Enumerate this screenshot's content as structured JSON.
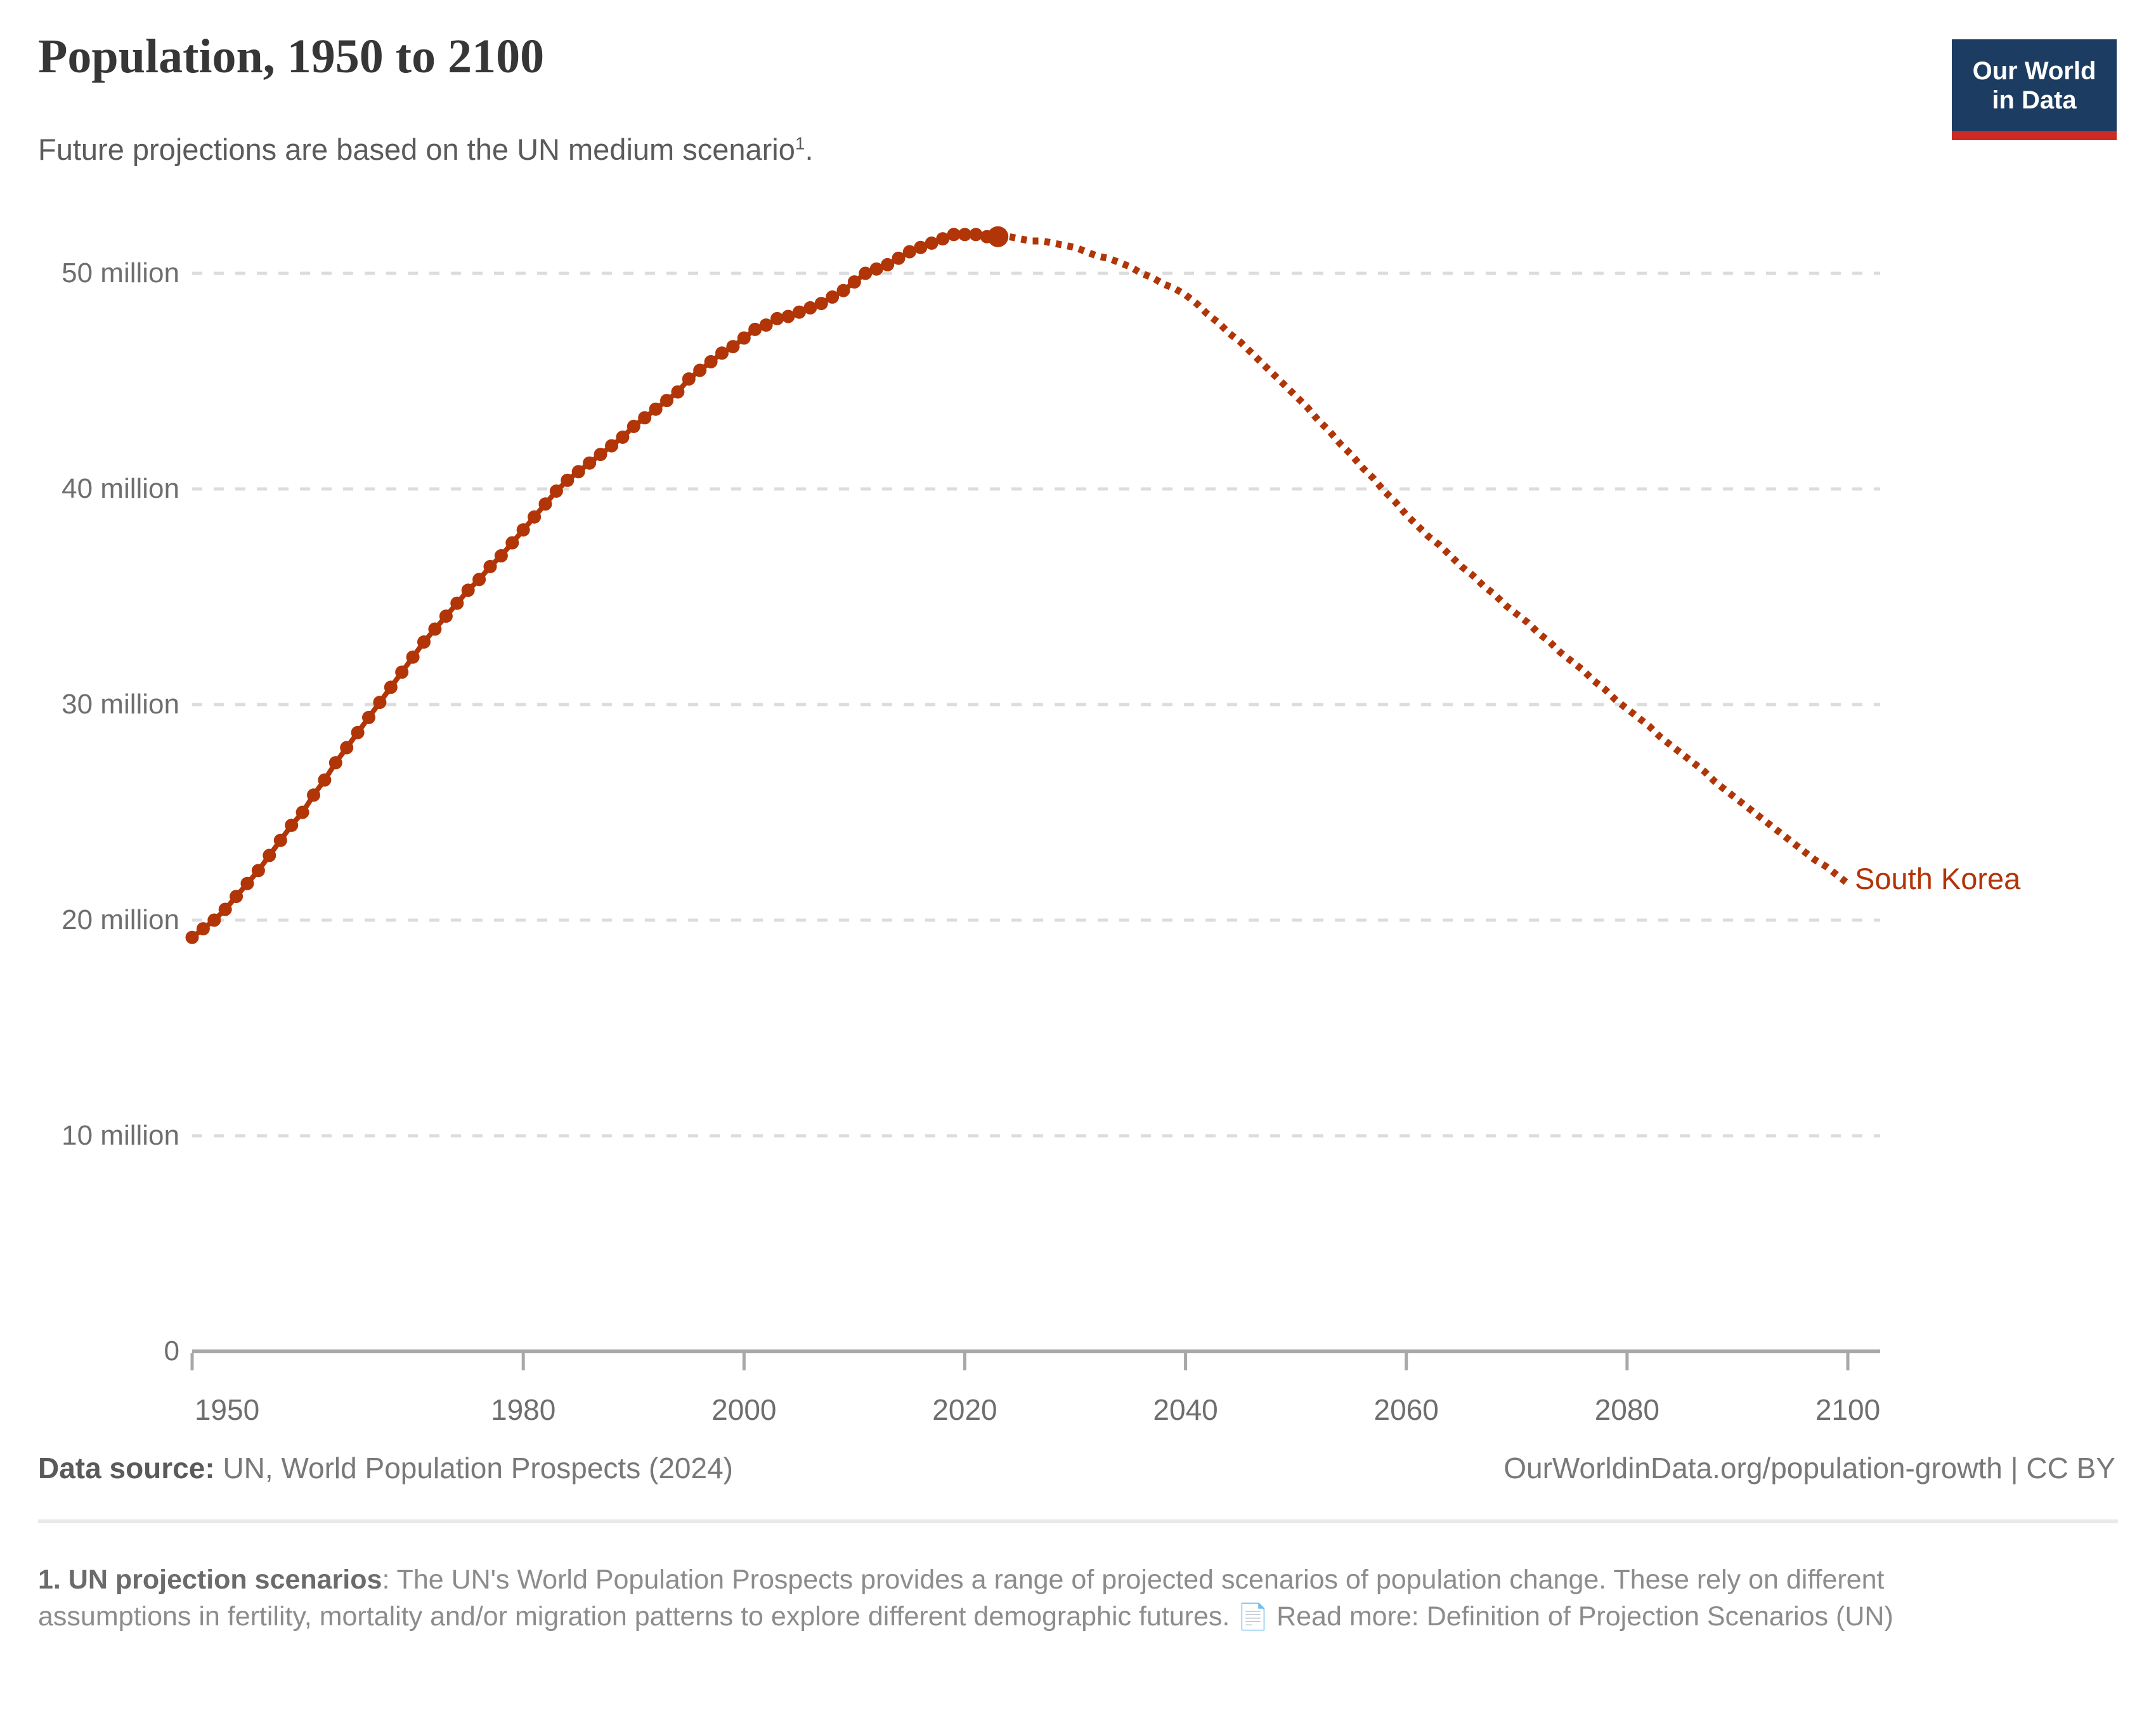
{
  "header": {
    "title": "Population, 1950 to 2100",
    "subtitle_text": "Future projections are based on the UN medium scenario",
    "footnote_marker": "1",
    "subtitle_period": "."
  },
  "logo": {
    "line1": "Our World",
    "line2": "in Data",
    "bg_color": "#1d3c62",
    "bar_color": "#cd2a26"
  },
  "chart_data": {
    "type": "line",
    "title": "Population, 1950 to 2100",
    "entity": "South Korea",
    "label": "South Korea",
    "line_color": "#b13507",
    "grid": "dashed horizontal gridlines",
    "legend_position": "end-of-line label",
    "xlim": [
      1950,
      2100
    ],
    "ylim": [
      0,
      52000000
    ],
    "x_ticks": [
      1950,
      1980,
      2000,
      2020,
      2040,
      2060,
      2080,
      2100
    ],
    "y_ticks": [
      {
        "value": 0,
        "label": "0"
      },
      {
        "value": 10000000,
        "label": "10 million"
      },
      {
        "value": 20000000,
        "label": "20 million"
      },
      {
        "value": 30000000,
        "label": "30 million"
      },
      {
        "value": 40000000,
        "label": "40 million"
      },
      {
        "value": 50000000,
        "label": "50 million"
      }
    ],
    "values_unit": "millions of people",
    "series": [
      {
        "name": "South Korea (estimates)",
        "style": "solid line with year markers",
        "years": [
          1950,
          1951,
          1952,
          1953,
          1954,
          1955,
          1956,
          1957,
          1958,
          1959,
          1960,
          1961,
          1962,
          1963,
          1964,
          1965,
          1966,
          1967,
          1968,
          1969,
          1970,
          1971,
          1972,
          1973,
          1974,
          1975,
          1976,
          1977,
          1978,
          1979,
          1980,
          1981,
          1982,
          1983,
          1984,
          1985,
          1986,
          1987,
          1988,
          1989,
          1990,
          1991,
          1992,
          1993,
          1994,
          1995,
          1996,
          1997,
          1998,
          1999,
          2000,
          2001,
          2002,
          2003,
          2004,
          2005,
          2006,
          2007,
          2008,
          2009,
          2010,
          2011,
          2012,
          2013,
          2014,
          2015,
          2016,
          2017,
          2018,
          2019,
          2020,
          2021,
          2022,
          2023
        ],
        "values": [
          19.2,
          19.6,
          20.0,
          20.5,
          21.1,
          21.7,
          22.3,
          23.0,
          23.7,
          24.4,
          25.0,
          25.8,
          26.5,
          27.3,
          28.0,
          28.7,
          29.4,
          30.1,
          30.8,
          31.5,
          32.2,
          32.9,
          33.5,
          34.1,
          34.7,
          35.3,
          35.8,
          36.4,
          36.9,
          37.5,
          38.1,
          38.7,
          39.3,
          39.9,
          40.4,
          40.8,
          41.2,
          41.6,
          42.0,
          42.4,
          42.9,
          43.3,
          43.7,
          44.1,
          44.5,
          45.1,
          45.5,
          45.9,
          46.3,
          46.6,
          47.0,
          47.4,
          47.6,
          47.9,
          48.0,
          48.2,
          48.4,
          48.6,
          48.9,
          49.2,
          49.6,
          50.0,
          50.2,
          50.4,
          50.7,
          51.0,
          51.2,
          51.4,
          51.6,
          51.8,
          51.8,
          51.8,
          51.7,
          51.7
        ]
      },
      {
        "name": "South Korea (UN medium scenario projection)",
        "style": "dotted line",
        "years": [
          2024,
          2025,
          2026,
          2027,
          2028,
          2029,
          2030,
          2031,
          2032,
          2033,
          2034,
          2035,
          2036,
          2037,
          2038,
          2039,
          2040,
          2041,
          2042,
          2043,
          2044,
          2045,
          2046,
          2047,
          2048,
          2049,
          2050,
          2051,
          2052,
          2053,
          2054,
          2055,
          2056,
          2057,
          2058,
          2059,
          2060,
          2061,
          2062,
          2063,
          2064,
          2065,
          2066,
          2067,
          2068,
          2069,
          2070,
          2071,
          2072,
          2073,
          2074,
          2075,
          2076,
          2077,
          2078,
          2079,
          2080,
          2081,
          2082,
          2083,
          2084,
          2085,
          2086,
          2087,
          2088,
          2089,
          2090,
          2091,
          2092,
          2093,
          2094,
          2095,
          2096,
          2097,
          2098,
          2099,
          2100
        ],
        "values": [
          51.7,
          51.6,
          51.5,
          51.5,
          51.4,
          51.3,
          51.2,
          51.0,
          50.8,
          50.7,
          50.5,
          50.3,
          50.0,
          49.8,
          49.5,
          49.3,
          49.0,
          48.6,
          48.1,
          47.7,
          47.2,
          46.8,
          46.3,
          45.8,
          45.3,
          44.8,
          44.3,
          43.8,
          43.2,
          42.7,
          42.1,
          41.6,
          41.0,
          40.5,
          39.9,
          39.4,
          38.8,
          38.3,
          37.8,
          37.4,
          36.9,
          36.4,
          36.0,
          35.5,
          35.1,
          34.6,
          34.2,
          33.8,
          33.3,
          32.9,
          32.4,
          32.0,
          31.6,
          31.1,
          30.7,
          30.2,
          29.8,
          29.4,
          29.0,
          28.5,
          28.1,
          27.7,
          27.3,
          26.9,
          26.4,
          26.0,
          25.6,
          25.2,
          24.8,
          24.4,
          24.0,
          23.6,
          23.2,
          22.8,
          22.5,
          22.1,
          21.7
        ]
      }
    ]
  },
  "footer": {
    "datasource_label": "Data source:",
    "datasource_value": "UN, World Population Prospects (2024)",
    "url": "OurWorldinData.org/population-growth",
    "separator": "|",
    "license": "CC BY"
  },
  "footnote": {
    "label": "1. UN projection scenarios",
    "body": ": The UN's World Population Prospects provides a range of projected scenarios of population change. These rely on different assumptions in fertility, mortality and/or migration patterns to explore different demographic futures.",
    "doc_icon": "📄",
    "read_more": "Read more: Definition of Projection Scenarios (UN)"
  }
}
